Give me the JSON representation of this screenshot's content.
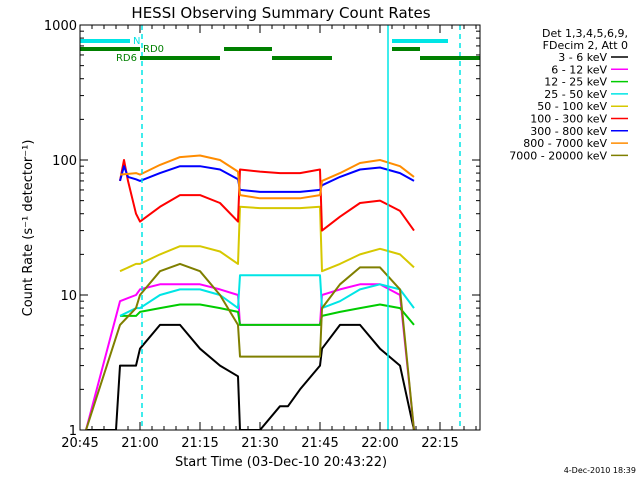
{
  "chart_data": {
    "type": "line",
    "title": "HESSI Observing Summary Count Rates",
    "xlabel": "Start Time (03-Dec-10 20:43:22)",
    "ylabel": "Count Rate (s⁻¹ detector⁻¹)",
    "x_range_minutes_after_2045": [
      0,
      100
    ],
    "xticks": [
      {
        "label": "20:45",
        "t": 0
      },
      {
        "label": "21:00",
        "t": 15
      },
      {
        "label": "21:15",
        "t": 30
      },
      {
        "label": "21:30",
        "t": 45
      },
      {
        "label": "21:45",
        "t": 60
      },
      {
        "label": "22:00",
        "t": 75
      },
      {
        "label": "22:15",
        "t": 90
      }
    ],
    "yscale": "log",
    "ylim": [
      1,
      1000
    ],
    "yticks": [
      {
        "label": "1",
        "v": 1
      },
      {
        "label": "10",
        "v": 10
      },
      {
        "label": "100",
        "v": 100
      },
      {
        "label": "1000",
        "v": 1000
      }
    ],
    "legend_header": [
      "Det 1,3,4,5,6,9,",
      "FDecim 2, Att 0"
    ],
    "legend_placement": "right",
    "timestamp": "4-Dec-2010 18:39",
    "series": [
      {
        "name": "3 - 6 keV",
        "color": "#000000",
        "x": [
          1.5,
          9,
          10,
          14,
          15,
          20,
          25,
          30,
          35,
          39.5,
          40,
          45,
          50,
          52,
          55,
          60,
          60.5,
          65,
          70,
          75,
          80,
          83.5
        ],
        "y": [
          1,
          1,
          3,
          3,
          4,
          6,
          6,
          4,
          3,
          2.5,
          1,
          1,
          1.5,
          1.5,
          2,
          3,
          4,
          6,
          6,
          4,
          3,
          1
        ]
      },
      {
        "name": "6 - 12 keV",
        "color": "#ff00ff",
        "x": [
          1.5,
          10,
          14,
          15,
          20,
          25,
          30,
          35,
          39.5,
          40,
          45,
          50,
          55,
          60,
          60.5,
          65,
          70,
          75,
          80,
          83.5
        ],
        "y": [
          1,
          9,
          10,
          11,
          12,
          12,
          12,
          11,
          10,
          6,
          6,
          6,
          6,
          6,
          10,
          11,
          12,
          12,
          10,
          1
        ]
      },
      {
        "name": "12 - 25 keV",
        "color": "#00cc00",
        "x": [
          10,
          14,
          15,
          20,
          25,
          30,
          35,
          39.5,
          40,
          45,
          50,
          55,
          60,
          60.5,
          65,
          70,
          75,
          80,
          83.5
        ],
        "y": [
          7,
          7,
          7.5,
          8,
          8.5,
          8.5,
          8,
          7.5,
          6,
          6,
          6,
          6,
          6,
          7,
          7.5,
          8,
          8.5,
          8,
          6
        ]
      },
      {
        "name": "25 - 50 keV",
        "color": "#00e5e5",
        "x": [
          10,
          14,
          15,
          20,
          25,
          30,
          35,
          39.5,
          40,
          45,
          50,
          55,
          60,
          60.5,
          65,
          70,
          75,
          80,
          83.5
        ],
        "y": [
          7,
          8,
          8,
          10,
          11,
          11,
          10,
          8,
          14,
          14,
          14,
          14,
          14,
          8,
          9,
          11,
          12,
          11,
          8
        ]
      },
      {
        "name": "50 - 100 keV",
        "color": "#d6c800",
        "x": [
          10,
          14,
          15,
          20,
          25,
          30,
          35,
          39.5,
          40,
          45,
          50,
          55,
          60,
          60.5,
          65,
          70,
          75,
          80,
          83.5
        ],
        "y": [
          15,
          17,
          17,
          20,
          23,
          23,
          21,
          17,
          45,
          44,
          44,
          44,
          45,
          15,
          17,
          20,
          22,
          20,
          16
        ]
      },
      {
        "name": "100 - 300 keV",
        "color": "#ff0000",
        "x": [
          10,
          11,
          12,
          14,
          15,
          20,
          25,
          30,
          35,
          39.5,
          40,
          45,
          50,
          55,
          60,
          60.5,
          65,
          70,
          75,
          80,
          83.5
        ],
        "y": [
          70,
          100,
          70,
          40,
          35,
          45,
          55,
          55,
          48,
          35,
          85,
          82,
          80,
          80,
          85,
          30,
          38,
          48,
          50,
          42,
          30
        ]
      },
      {
        "name": "300 - 800 keV",
        "color": "#0000ff",
        "x": [
          10,
          11,
          12,
          14,
          15,
          20,
          25,
          30,
          35,
          39.5,
          40,
          45,
          50,
          55,
          60,
          60.5,
          65,
          70,
          75,
          80,
          83.5
        ],
        "y": [
          70,
          90,
          75,
          72,
          70,
          80,
          90,
          90,
          85,
          72,
          60,
          58,
          58,
          58,
          60,
          65,
          75,
          85,
          88,
          80,
          70
        ]
      },
      {
        "name": "800 - 7000 keV",
        "color": "#ff8c00",
        "x": [
          10,
          14,
          15,
          20,
          25,
          30,
          35,
          39.5,
          40,
          45,
          50,
          55,
          60,
          60.5,
          65,
          70,
          75,
          80,
          83.5
        ],
        "y": [
          78,
          80,
          78,
          92,
          105,
          108,
          100,
          82,
          55,
          52,
          52,
          52,
          55,
          70,
          80,
          95,
          100,
          90,
          75
        ]
      },
      {
        "name": "7000 - 20000 keV",
        "color": "#7f7f00",
        "x": [
          1.5,
          10,
          14,
          15,
          20,
          25,
          30,
          35,
          39.5,
          40,
          45,
          50,
          55,
          60,
          60.5,
          65,
          70,
          75,
          80,
          83.5
        ],
        "y": [
          1,
          6,
          8,
          10,
          15,
          17,
          15,
          10,
          6,
          3.5,
          3.5,
          3.5,
          3.5,
          3.5,
          8,
          12,
          16,
          16,
          11,
          1
        ]
      }
    ],
    "annotations": [
      {
        "text": "N",
        "color": "#00e5e5",
        "segments": [
          [
            0,
            12.5
          ],
          [
            78,
            92
          ]
        ]
      },
      {
        "text": "RD0",
        "color": "#008000",
        "segments": [
          [
            0,
            15
          ],
          [
            36,
            48
          ],
          [
            78,
            85
          ]
        ]
      },
      {
        "text": "RD6",
        "color": "#008000",
        "segments": [
          [
            15,
            35
          ],
          [
            48,
            63
          ],
          [
            85,
            100
          ]
        ]
      }
    ],
    "vertical_lines": [
      {
        "t": 15.5,
        "style": "dashed",
        "color": "#00e5e5"
      },
      {
        "t": 77,
        "style": "solid",
        "color": "#00e5e5"
      },
      {
        "t": 95,
        "style": "dashed",
        "color": "#00e5e5"
      }
    ]
  }
}
